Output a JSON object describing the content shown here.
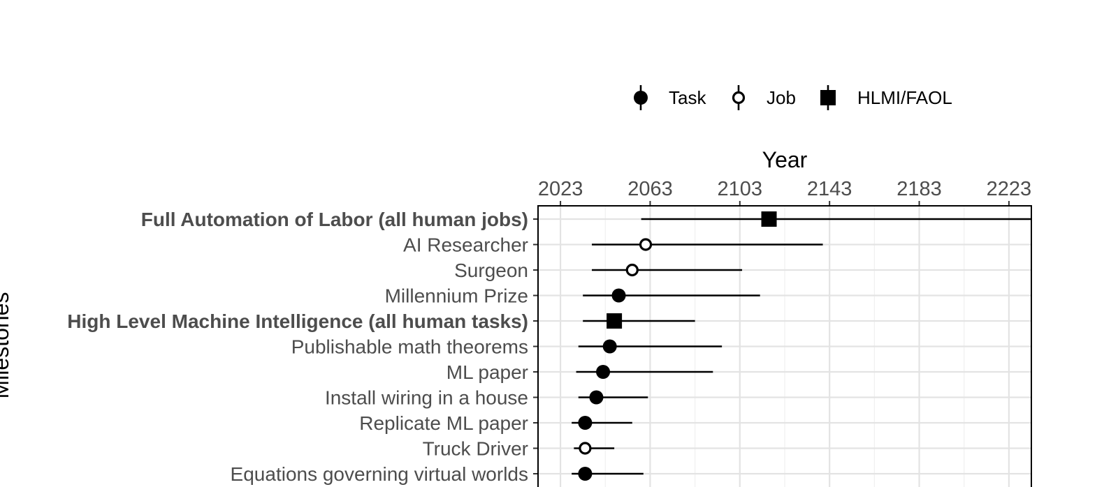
{
  "chart_data": {
    "type": "scatter",
    "x_axis": {
      "title": "Year",
      "position": "top",
      "ticks": [
        2023,
        2063,
        2103,
        2143,
        2183,
        2223
      ],
      "range": [
        2013,
        2233
      ]
    },
    "y_axis": {
      "title": "Milestones"
    },
    "grid": true,
    "legend": {
      "placement": "top",
      "entries": [
        {
          "label": "Task",
          "marker": "filled-circle"
        },
        {
          "label": "Job",
          "marker": "open-circle"
        },
        {
          "label": "HLMI/FAOL",
          "marker": "filled-square"
        }
      ]
    },
    "milestones": [
      {
        "name": "Full Automation of Labor (all human jobs)",
        "bold": true,
        "type": "HLMI/FAOL",
        "median": 2116,
        "low": 2059,
        "high": 2233
      },
      {
        "name": "AI Researcher",
        "bold": false,
        "type": "Job",
        "median": 2061,
        "low": 2037,
        "high": 2140
      },
      {
        "name": "Surgeon",
        "bold": false,
        "type": "Job",
        "median": 2055,
        "low": 2037,
        "high": 2104
      },
      {
        "name": "Millennium Prize",
        "bold": false,
        "type": "Task",
        "median": 2049,
        "low": 2033,
        "high": 2112
      },
      {
        "name": "High Level Machine Intelligence (all human tasks)",
        "bold": true,
        "type": "HLMI/FAOL",
        "median": 2047,
        "low": 2033,
        "high": 2083
      },
      {
        "name": "Publishable math theorems",
        "bold": false,
        "type": "Task",
        "median": 2045,
        "low": 2031,
        "high": 2095
      },
      {
        "name": "ML paper",
        "bold": false,
        "type": "Task",
        "median": 2042,
        "low": 2030,
        "high": 2091
      },
      {
        "name": "Install wiring in a house",
        "bold": false,
        "type": "Task",
        "median": 2039,
        "low": 2031,
        "high": 2062
      },
      {
        "name": "Replicate ML paper",
        "bold": false,
        "type": "Task",
        "median": 2034,
        "low": 2028,
        "high": 2055
      },
      {
        "name": "Truck Driver",
        "bold": false,
        "type": "Job",
        "median": 2034,
        "low": 2029,
        "high": 2047
      },
      {
        "name": "Equations governing virtual worlds",
        "bold": false,
        "type": "Task",
        "median": 2034,
        "low": 2028,
        "high": 2060
      }
    ]
  }
}
